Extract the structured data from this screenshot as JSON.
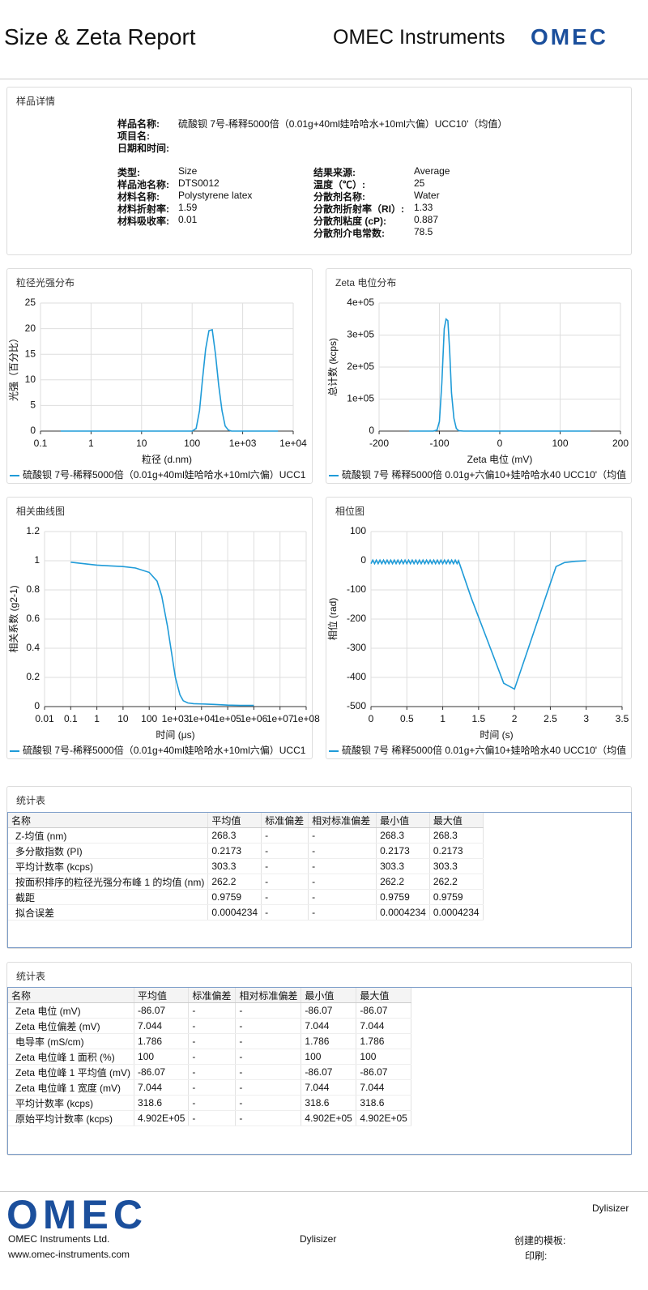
{
  "header": {
    "title": "Size & Zeta Report",
    "brand": "OMEC Instruments",
    "logo": "OMEC"
  },
  "sample": {
    "title": "样品详情",
    "top": [
      {
        "label": "样品名称:",
        "value": "硫酸钡 7号-稀释5000倍（0.01g+40ml娃哈哈水+10ml六偏）UCC10'（均值）"
      },
      {
        "label": "项目名:"
      },
      {
        "label": "日期和时间:"
      }
    ],
    "left": [
      {
        "label": "类型:",
        "value": "Size"
      },
      {
        "label": "样品池名称:",
        "value": "DTS0012"
      },
      {
        "label": "材料名称:",
        "value": "Polystyrene latex"
      },
      {
        "label": "材料折射率:",
        "value": "1.59"
      },
      {
        "label": "材料吸收率:",
        "value": "0.01"
      }
    ],
    "right": [
      {
        "label": "结果来源:",
        "value": "Average"
      },
      {
        "label": "温度（℃）:",
        "value": "25"
      },
      {
        "label": "分散剂名称:",
        "value": "Water"
      },
      {
        "label": "分散剂折射率（RI）:",
        "value": "1.33"
      },
      {
        "label": "分散剂粘度 (cP):",
        "value": "0.887"
      },
      {
        "label": "分散剂介电常数:",
        "value": "78.5"
      }
    ]
  },
  "chart_data": [
    {
      "type": "line",
      "title": "粒径光强分布",
      "xlabel": "粒径 (d.nm)",
      "ylabel": "光强（百分比）",
      "xlog": true,
      "grid": true,
      "x": [
        0.25,
        0.5,
        1,
        2,
        5,
        10,
        20,
        50,
        100,
        120,
        140,
        160,
        185,
        215,
        250,
        290,
        335,
        390,
        450,
        520,
        600,
        1000,
        2000,
        5000
      ],
      "series": [
        {
          "name": "硫酸钡 7号-稀释5000倍（0.01g+40ml娃哈哈水+10ml六偏）UCC1",
          "color": "#1f9bd8",
          "values": [
            0,
            0,
            0,
            0,
            0,
            0,
            0,
            0,
            0,
            0.5,
            4,
            10,
            16,
            19.6,
            19.8,
            15,
            9,
            4,
            1,
            0.2,
            0,
            0,
            0,
            0
          ]
        }
      ],
      "xlim": [
        0.1,
        10000
      ],
      "xticks": [
        0.1,
        1,
        10,
        100,
        {
          "value": 1000,
          "label": "1e+03"
        },
        {
          "value": 10000,
          "label": "1e+04"
        }
      ],
      "ylim": [
        0,
        25
      ],
      "yticks": [
        0,
        5,
        10,
        15,
        20,
        25
      ]
    },
    {
      "type": "line",
      "title": "Zeta 电位分布",
      "xlabel": "Zeta 电位 (mV)",
      "ylabel": "总计数 (kcps)",
      "xlog": false,
      "grid": true,
      "x": [
        -150,
        -120,
        -110,
        -104,
        -100,
        -96,
        -92,
        -89,
        -86,
        -83,
        -80,
        -76,
        -72,
        -68,
        -60,
        -40,
        0,
        50,
        100,
        150
      ],
      "series": [
        {
          "name": "硫酸钡 7号 稀释5000倍 0.01g+六偏10+娃哈哈水40 UCC10'（均值",
          "color": "#1f9bd8",
          "values": [
            0,
            0,
            0,
            3000,
            30000,
            150000,
            320000,
            350000,
            345000,
            250000,
            120000,
            40000,
            8000,
            1000,
            0,
            0,
            0,
            0,
            0,
            0
          ]
        }
      ],
      "xlim": [
        -200,
        200
      ],
      "xticks": [
        -200,
        -100,
        0,
        100,
        200
      ],
      "ylim": [
        0,
        400000
      ],
      "yticks": [
        0,
        {
          "value": 100000,
          "label": "1e+05"
        },
        {
          "value": 200000,
          "label": "2e+05"
        },
        {
          "value": 300000,
          "label": "3e+05"
        },
        {
          "value": 400000,
          "label": "4e+05"
        }
      ]
    },
    {
      "type": "line",
      "title": "相关曲线图",
      "xlabel": "时间 (μs)",
      "ylabel": "相关系数 (g2-1)",
      "xlog": true,
      "grid": true,
      "x": [
        0.1,
        0.3,
        1,
        3,
        10,
        30,
        100,
        200,
        300,
        500,
        700,
        1000,
        1500,
        2000,
        3000,
        5000,
        10000,
        30000,
        100000,
        300000,
        1000000
      ],
      "series": [
        {
          "name": "硫酸钡 7号-稀释5000倍（0.01g+40ml娃哈哈水+10ml六偏）UCC1",
          "color": "#1f9bd8",
          "values": [
            0.99,
            0.98,
            0.97,
            0.965,
            0.96,
            0.95,
            0.92,
            0.86,
            0.76,
            0.55,
            0.38,
            0.2,
            0.08,
            0.04,
            0.025,
            0.02,
            0.018,
            0.015,
            0.01,
            0.008,
            0.008
          ]
        }
      ],
      "xlim": [
        0.01,
        100000000
      ],
      "xticks": [
        0.01,
        0.1,
        1,
        10,
        100,
        {
          "value": 1000,
          "label": "1e+03"
        },
        {
          "value": 10000,
          "label": "1e+04"
        },
        {
          "value": 100000,
          "label": "1e+05"
        },
        {
          "value": 1000000,
          "label": "1e+06"
        },
        {
          "value": 10000000,
          "label": "1e+07"
        },
        {
          "value": 100000000,
          "label": "1e+08"
        }
      ],
      "ylim": [
        0,
        1.2
      ],
      "yticks": [
        0,
        0.2,
        0.4,
        0.6,
        0.8,
        1,
        1.2
      ]
    },
    {
      "type": "line",
      "title": "相位图",
      "xlabel": "时间 (s)",
      "ylabel": "相位 (rad)",
      "xlog": false,
      "grid": true,
      "x": [
        0,
        0.025,
        0.05,
        0.075,
        0.1,
        0.125,
        0.15,
        0.175,
        0.2,
        0.225,
        0.25,
        0.275,
        0.3,
        0.325,
        0.35,
        0.375,
        0.4,
        0.425,
        0.45,
        0.475,
        0.5,
        0.525,
        0.55,
        0.575,
        0.6,
        0.625,
        0.65,
        0.675,
        0.7,
        0.725,
        0.75,
        0.775,
        0.8,
        0.825,
        0.85,
        0.875,
        0.9,
        0.925,
        0.95,
        0.975,
        1,
        1.025,
        1.05,
        1.075,
        1.1,
        1.125,
        1.15,
        1.175,
        1.2,
        1.22,
        1.4,
        1.6,
        1.85,
        2,
        2.2,
        2.4,
        2.58,
        2.7,
        2.85,
        3
      ],
      "series": [
        {
          "name": "硫酸钡 7号 稀释5000倍 0.01g+六偏10+娃哈哈水40 UCC10'（均值",
          "color": "#1f9bd8",
          "values": [
            -10,
            2,
            -10,
            2,
            -10,
            2,
            -10,
            2,
            -10,
            2,
            -10,
            2,
            -10,
            2,
            -10,
            2,
            -10,
            2,
            -10,
            2,
            -10,
            2,
            -10,
            2,
            -10,
            2,
            -10,
            2,
            -10,
            2,
            -10,
            2,
            -10,
            2,
            -10,
            2,
            -10,
            2,
            -10,
            2,
            -10,
            2,
            -10,
            2,
            -10,
            2,
            -10,
            2,
            -10,
            0,
            -129,
            -258,
            -420,
            -440,
            -295,
            -150,
            -20,
            -6,
            -2,
            0
          ]
        }
      ],
      "xlim": [
        0,
        3.5
      ],
      "xticks": [
        0,
        0.5,
        1,
        1.5,
        2,
        2.5,
        3,
        3.5
      ],
      "ylim": [
        -500,
        100
      ],
      "yticks": [
        -500,
        -400,
        -300,
        -200,
        -100,
        0,
        100
      ]
    }
  ],
  "tables": [
    {
      "title": "统计表",
      "header": [
        "名称",
        "平均值",
        "标准偏差",
        "相对标准偏差",
        "最小值",
        "最大值"
      ],
      "rows": [
        [
          "Z-均值 (nm)",
          "268.3",
          "-",
          "-",
          "268.3",
          "268.3"
        ],
        [
          "多分散指数 (PI)",
          "0.2173",
          "-",
          "-",
          "0.2173",
          "0.2173"
        ],
        [
          "平均计数率 (kcps)",
          "303.3",
          "-",
          "-",
          "303.3",
          "303.3"
        ],
        [
          "按面积排序的粒径光强分布峰 1 的均值 (nm)",
          "262.2",
          "-",
          "-",
          "262.2",
          "262.2"
        ],
        [
          "截距",
          "0.9759",
          "-",
          "-",
          "0.9759",
          "0.9759"
        ],
        [
          "拟合误差",
          "0.0004234",
          "-",
          "-",
          "0.0004234",
          "0.0004234"
        ]
      ]
    },
    {
      "title": "统计表",
      "header": [
        "名称",
        "平均值",
        "标准偏差",
        "相对标准偏差",
        "最小值",
        "最大值"
      ],
      "rows": [
        [
          "Zeta 电位 (mV)",
          "-86.07",
          "-",
          "-",
          "-86.07",
          "-86.07"
        ],
        [
          "Zeta 电位偏差 (mV)",
          "7.044",
          "-",
          "-",
          "7.044",
          "7.044"
        ],
        [
          "电导率 (mS/cm)",
          "1.786",
          "-",
          "-",
          "1.786",
          "1.786"
        ],
        [
          "Zeta 电位峰 1 面积 (%)",
          "100",
          "-",
          "-",
          "100",
          "100"
        ],
        [
          "Zeta 电位峰 1 平均值 (mV)",
          "-86.07",
          "-",
          "-",
          "-86.07",
          "-86.07"
        ],
        [
          "Zeta 电位峰 1 宽度 (mV)",
          "7.044",
          "-",
          "-",
          "7.044",
          "7.044"
        ],
        [
          "平均计数率 (kcps)",
          "318.6",
          "-",
          "-",
          "318.6",
          "318.6"
        ],
        [
          "原始平均计数率 (kcps)",
          "4.902E+05",
          "-",
          "-",
          "4.902E+05",
          "4.902E+05"
        ]
      ]
    }
  ],
  "footer": {
    "logo": "OMEC",
    "product_top": "Dylisizer",
    "company": "OMEC Instruments Ltd.",
    "product": "Dylisizer",
    "template_label": "创建的模板:",
    "url": "www.omec-instruments.com",
    "print_label": "印刷:"
  }
}
